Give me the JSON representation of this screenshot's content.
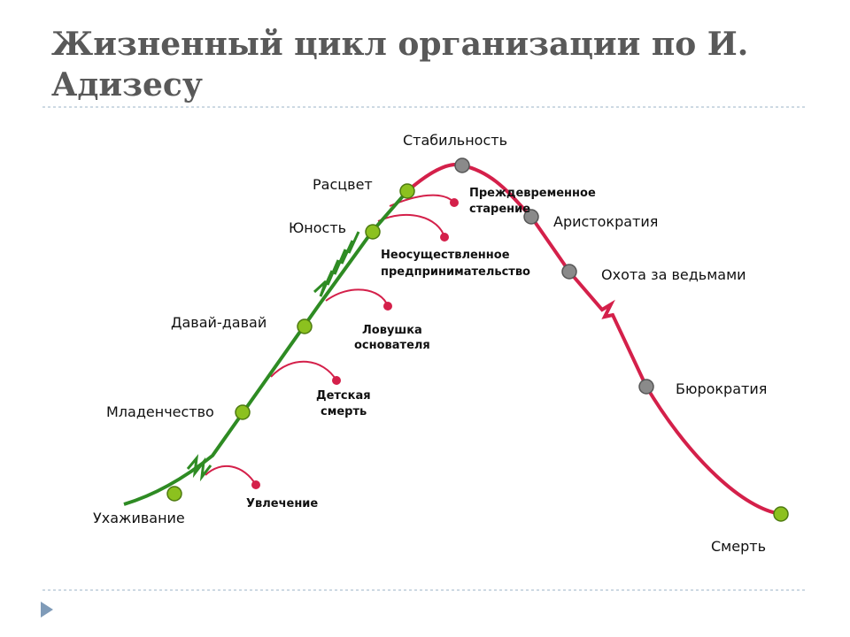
{
  "header": {
    "title_lines": [
      "Жизненный цикл организации по И.",
      "Адизесу"
    ]
  },
  "growth_stages": [
    {
      "label": "Ухаживание"
    },
    {
      "label": "Младенчество"
    },
    {
      "label": "Давай-давай"
    },
    {
      "label": "Юность"
    },
    {
      "label": "Расцвет"
    }
  ],
  "aging_stages": [
    {
      "label": "Стабильность"
    },
    {
      "label": "Аристократия"
    },
    {
      "label": "Охота за ведьмами"
    },
    {
      "label": "Бюрократия"
    },
    {
      "label": "Смерть"
    }
  ],
  "traps": [
    {
      "lines": [
        "Увлечение"
      ]
    },
    {
      "lines": [
        "Детская",
        "смерть"
      ]
    },
    {
      "lines": [
        "Ловушка",
        "основателя"
      ]
    },
    {
      "lines": [
        "Неосуществленное",
        "предпринимательство"
      ]
    },
    {
      "lines": [
        "Преждевременное",
        "старение"
      ]
    }
  ]
}
